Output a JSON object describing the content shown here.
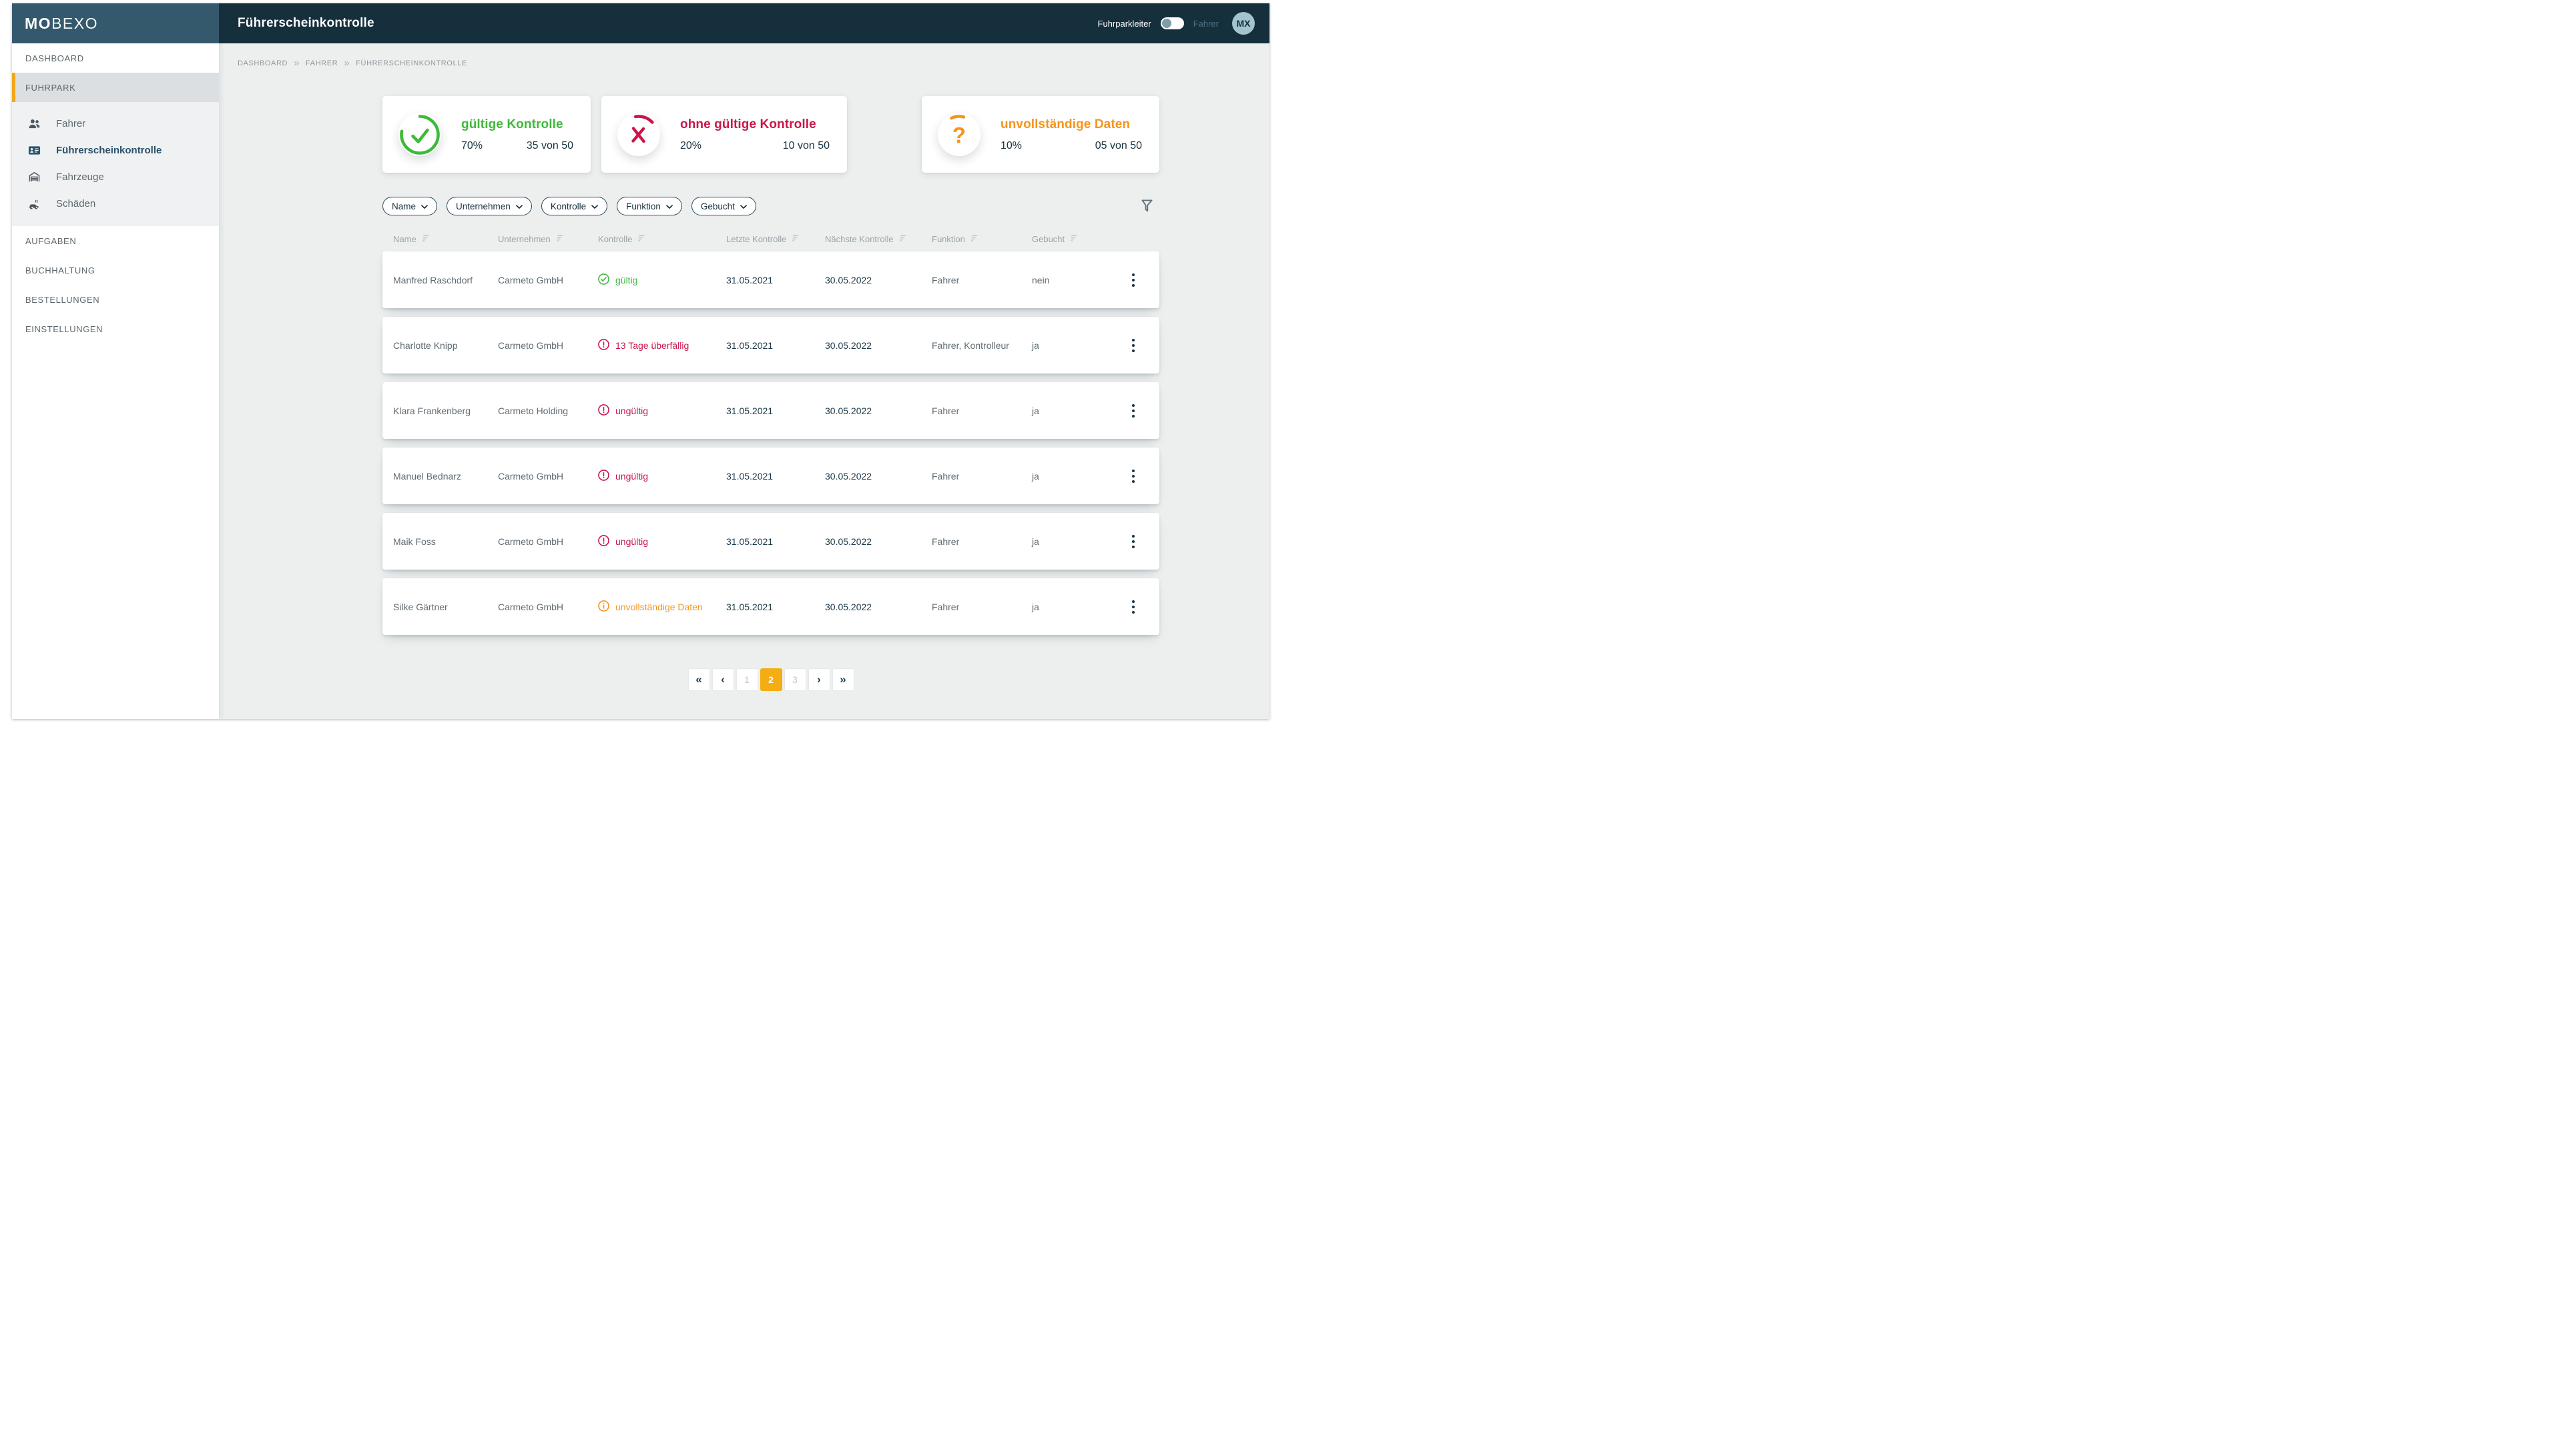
{
  "logo": {
    "bold": "MO",
    "light": "BEXO"
  },
  "topbar": {
    "title": "Führerscheinkontrolle",
    "role_left": "Fuhrparkleiter",
    "role_right": "Fahrer",
    "active_role": "Fuhrparkleiter",
    "avatar_initials": "MX"
  },
  "sidebar": {
    "primary": [
      {
        "label": "DASHBOARD",
        "active": false
      },
      {
        "label": "FUHRPARK",
        "active": true
      }
    ],
    "fuhrpark_children": [
      {
        "label": "Fahrer",
        "icon": "drivers-icon",
        "active": false
      },
      {
        "label": "Führerscheinkontrolle",
        "icon": "license-card-icon",
        "active": true
      },
      {
        "label": "Fahrzeuge",
        "icon": "garage-icon",
        "active": false
      },
      {
        "label": "Schäden",
        "icon": "damage-car-icon",
        "active": false
      }
    ],
    "secondary": [
      {
        "label": "AUFGABEN"
      },
      {
        "label": "BUCHHALTUNG"
      },
      {
        "label": "BESTELLUNGEN"
      },
      {
        "label": "EINSTELLUNGEN"
      }
    ]
  },
  "breadcrumb": {
    "separator": "»",
    "items": [
      "DASHBOARD",
      "FAHRER",
      "FÜHRERSCHEINKONTROLLE"
    ]
  },
  "stat_cards": [
    {
      "title": "gültige Kontrolle",
      "percent": "70%",
      "count": "35 von 50",
      "color": "#3eba3a",
      "icon": "check-circle-icon"
    },
    {
      "title": "ohne gültige Kontrolle",
      "percent": "20%",
      "count": "10 von 50",
      "color": "#c8164a",
      "icon": "cross-circle-icon"
    },
    {
      "title": "unvollständige Daten",
      "percent": "10%",
      "count": "05 von 50",
      "color": "#f6941d",
      "icon": "question-circle-icon"
    }
  ],
  "filters": [
    "Name",
    "Unternehmen",
    "Kontrolle",
    "Funktion",
    "Gebucht"
  ],
  "table": {
    "columns": [
      "Name",
      "Unternehmen",
      "Kontrolle",
      "Letzte Kontrolle",
      "Nächste Kontrolle",
      "Funktion",
      "Gebucht"
    ],
    "rows": [
      {
        "name": "Manfred Raschdorf",
        "company": "Carmeto GmbH",
        "status": "gültig",
        "status_type": "valid",
        "last": "31.05.2021",
        "next": "30.05.2022",
        "function": "Fahrer",
        "booked": "nein"
      },
      {
        "name": "Charlotte Knipp",
        "company": "Carmeto GmbH",
        "status": "13 Tage überfällig",
        "status_type": "overdue",
        "last": "31.05.2021",
        "next": "30.05.2022",
        "function": "Fahrer, Kontrolleur",
        "booked": "ja"
      },
      {
        "name": "Klara Frankenberg",
        "company": "Carmeto Holding",
        "status": "ungültig",
        "status_type": "invalid",
        "last": "31.05.2021",
        "next": "30.05.2022",
        "function": "Fahrer",
        "booked": "ja"
      },
      {
        "name": "Manuel Bednarz",
        "company": "Carmeto GmbH",
        "status": "ungültig",
        "status_type": "invalid",
        "last": "31.05.2021",
        "next": "30.05.2022",
        "function": "Fahrer",
        "booked": "ja"
      },
      {
        "name": "Maik Foss",
        "company": "Carmeto GmbH",
        "status": "ungültig",
        "status_type": "invalid",
        "last": "31.05.2021",
        "next": "30.05.2022",
        "function": "Fahrer",
        "booked": "ja"
      },
      {
        "name": "Silke Gärtner",
        "company": "Carmeto GmbH",
        "status": "unvollständige Daten",
        "status_type": "incomplete",
        "last": "31.05.2021",
        "next": "30.05.2022",
        "function": "Fahrer",
        "booked": "ja"
      }
    ]
  },
  "pagination": {
    "first": "«",
    "prev": "‹",
    "pages": [
      "1",
      "2",
      "3"
    ],
    "active": "2",
    "next": "›",
    "last": "»"
  }
}
